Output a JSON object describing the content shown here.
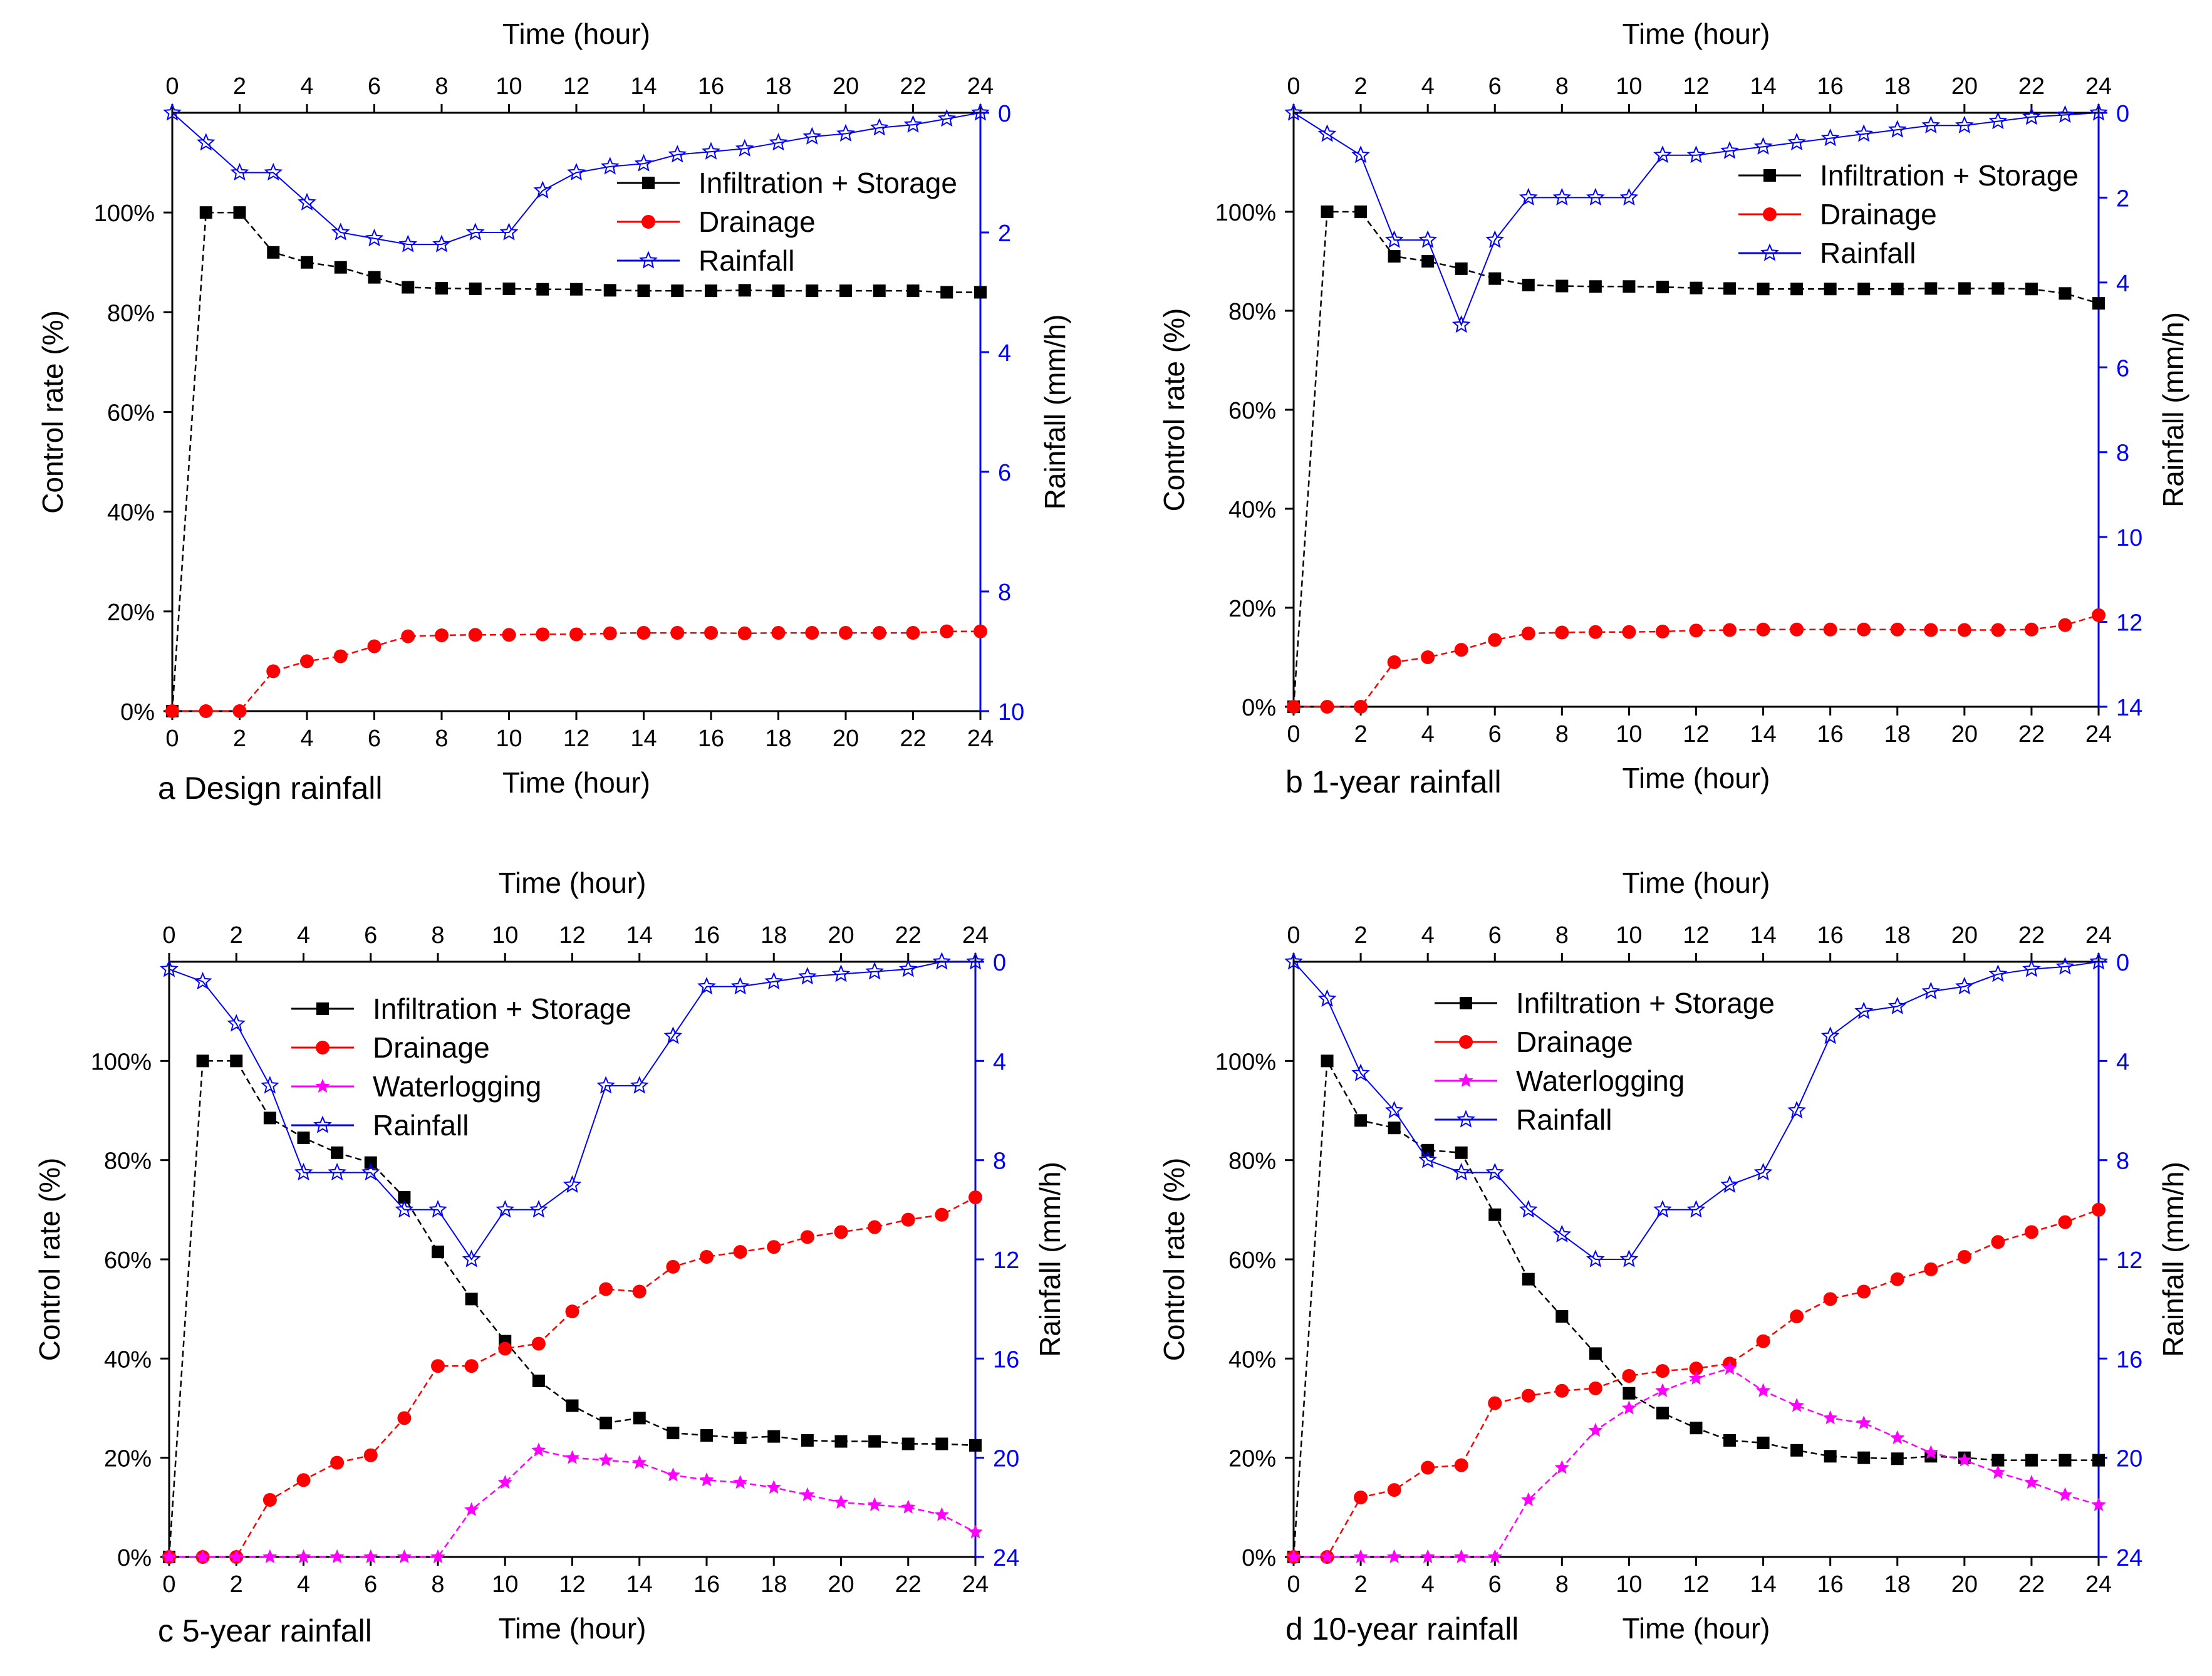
{
  "figure": {
    "x_label": "Time (hour)",
    "y_left_label": "Control rate (%)",
    "y_right_label": "Rainfall (mm/h)"
  },
  "colors": {
    "infiltration": "#000000",
    "drainage": "#ff0000",
    "waterlogging": "#ff00ff",
    "rainfall": "#0000ff",
    "axis_right": "#0000ff",
    "axis": "#000000"
  },
  "chart_data": [
    {
      "type": "line",
      "caption": "a Design rainfall",
      "x_ticks": [
        0,
        2,
        4,
        6,
        8,
        10,
        12,
        14,
        16,
        18,
        20,
        22,
        24
      ],
      "xlim": [
        0,
        24
      ],
      "ylim_left": [
        0,
        120
      ],
      "y_left_ticks": [
        0,
        20,
        40,
        60,
        80,
        100
      ],
      "ylim_right": [
        0,
        10
      ],
      "y_right_ticks": [
        0,
        2,
        4,
        6,
        8,
        10
      ],
      "right_axis_inverted": true,
      "legend": [
        {
          "series": "infiltration",
          "label": "Infiltration + Storage"
        },
        {
          "series": "drainage",
          "label": "Drainage"
        },
        {
          "series": "rainfall",
          "label": "Rainfall"
        }
      ],
      "series": [
        {
          "key": "infiltration",
          "name": "Infiltration + Storage",
          "axis": "left",
          "x": [
            0,
            1,
            2,
            3,
            4,
            5,
            6,
            7,
            8,
            9,
            10,
            11,
            12,
            13,
            14,
            15,
            16,
            17,
            18,
            19,
            20,
            21,
            22,
            23,
            24
          ],
          "values": [
            0,
            100,
            100,
            92,
            90,
            89,
            87,
            85,
            84.8,
            84.7,
            84.7,
            84.6,
            84.6,
            84.4,
            84.3,
            84.3,
            84.3,
            84.4,
            84.3,
            84.3,
            84.3,
            84.3,
            84.3,
            84,
            84
          ]
        },
        {
          "key": "drainage",
          "name": "Drainage",
          "axis": "left",
          "x": [
            0,
            1,
            2,
            3,
            4,
            5,
            6,
            7,
            8,
            9,
            10,
            11,
            12,
            13,
            14,
            15,
            16,
            17,
            18,
            19,
            20,
            21,
            22,
            23,
            24
          ],
          "values": [
            0,
            0,
            0,
            8,
            10,
            11,
            13,
            15,
            15.2,
            15.3,
            15.3,
            15.4,
            15.4,
            15.6,
            15.7,
            15.7,
            15.7,
            15.6,
            15.7,
            15.7,
            15.7,
            15.7,
            15.7,
            16,
            16
          ]
        },
        {
          "key": "rainfall",
          "name": "Rainfall",
          "axis": "right",
          "x": [
            0,
            1,
            2,
            3,
            4,
            5,
            6,
            7,
            8,
            9,
            10,
            11,
            12,
            13,
            14,
            15,
            16,
            17,
            18,
            19,
            20,
            21,
            22,
            23,
            24
          ],
          "values": [
            0,
            0.5,
            1,
            1,
            1.5,
            2,
            2.1,
            2.2,
            2.2,
            2,
            2,
            1.3,
            1,
            0.9,
            0.85,
            0.7,
            0.65,
            0.6,
            0.5,
            0.4,
            0.35,
            0.25,
            0.2,
            0.1,
            0
          ]
        }
      ]
    },
    {
      "type": "line",
      "caption": "b 1-year rainfall",
      "x_ticks": [
        0,
        2,
        4,
        6,
        8,
        10,
        12,
        14,
        16,
        18,
        20,
        22,
        24
      ],
      "xlim": [
        0,
        24
      ],
      "ylim_left": [
        0,
        120
      ],
      "y_left_ticks": [
        0,
        20,
        40,
        60,
        80,
        100
      ],
      "ylim_right": [
        0,
        14
      ],
      "y_right_ticks": [
        0,
        2,
        4,
        6,
        8,
        10,
        12,
        14
      ],
      "right_axis_inverted": true,
      "legend": [
        {
          "series": "infiltration",
          "label": "Infiltration + Storage"
        },
        {
          "series": "drainage",
          "label": "Drainage"
        },
        {
          "series": "rainfall",
          "label": "Rainfall"
        }
      ],
      "series": [
        {
          "key": "infiltration",
          "name": "Infiltration + Storage",
          "axis": "left",
          "x": [
            0,
            1,
            2,
            3,
            4,
            5,
            6,
            7,
            8,
            9,
            10,
            11,
            12,
            13,
            14,
            15,
            16,
            17,
            18,
            19,
            20,
            21,
            22,
            23,
            24
          ],
          "values": [
            0,
            100,
            100,
            91,
            90,
            88.5,
            86.5,
            85.2,
            85,
            84.9,
            84.9,
            84.8,
            84.6,
            84.5,
            84.4,
            84.4,
            84.4,
            84.4,
            84.4,
            84.5,
            84.5,
            84.5,
            84.4,
            83.5,
            81.5
          ]
        },
        {
          "key": "drainage",
          "name": "Drainage",
          "axis": "left",
          "x": [
            0,
            1,
            2,
            3,
            4,
            5,
            6,
            7,
            8,
            9,
            10,
            11,
            12,
            13,
            14,
            15,
            16,
            17,
            18,
            19,
            20,
            21,
            22,
            23,
            24
          ],
          "values": [
            0,
            0,
            0,
            9,
            10,
            11.5,
            13.5,
            14.8,
            15,
            15.1,
            15.1,
            15.2,
            15.4,
            15.5,
            15.6,
            15.6,
            15.6,
            15.6,
            15.6,
            15.5,
            15.5,
            15.5,
            15.6,
            16.5,
            18.5
          ]
        },
        {
          "key": "rainfall",
          "name": "Rainfall",
          "axis": "right",
          "x": [
            0,
            1,
            2,
            3,
            4,
            5,
            6,
            7,
            8,
            9,
            10,
            11,
            12,
            13,
            14,
            15,
            16,
            17,
            18,
            19,
            20,
            21,
            22,
            23,
            24
          ],
          "values": [
            0,
            0.5,
            1,
            3,
            3,
            5,
            3,
            2,
            2,
            2,
            2,
            1,
            1,
            0.9,
            0.8,
            0.7,
            0.6,
            0.5,
            0.4,
            0.3,
            0.3,
            0.2,
            0.1,
            0.05,
            0
          ]
        }
      ]
    },
    {
      "type": "line",
      "caption": "c 5-year rainfall",
      "x_ticks": [
        0,
        2,
        4,
        6,
        8,
        10,
        12,
        14,
        16,
        18,
        20,
        22,
        24
      ],
      "xlim": [
        0,
        24
      ],
      "ylim_left": [
        0,
        120
      ],
      "y_left_ticks": [
        0,
        20,
        40,
        60,
        80,
        100
      ],
      "ylim_right": [
        0,
        24
      ],
      "y_right_ticks": [
        0,
        4,
        8,
        12,
        16,
        20,
        24
      ],
      "right_axis_inverted": true,
      "legend": [
        {
          "series": "infiltration",
          "label": "Infiltration + Storage"
        },
        {
          "series": "drainage",
          "label": "Drainage"
        },
        {
          "series": "waterlogging",
          "label": "Waterlogging"
        },
        {
          "series": "rainfall",
          "label": "Rainfall"
        }
      ],
      "series": [
        {
          "key": "infiltration",
          "name": "Infiltration + Storage",
          "axis": "left",
          "x": [
            0,
            1,
            2,
            3,
            4,
            5,
            6,
            7,
            8,
            9,
            10,
            11,
            12,
            13,
            14,
            15,
            16,
            17,
            18,
            19,
            20,
            21,
            22,
            23,
            24
          ],
          "values": [
            0,
            100,
            100,
            88.5,
            84.5,
            81.5,
            79.5,
            72.5,
            61.5,
            52,
            43.5,
            35.5,
            30.5,
            27,
            28,
            25,
            24.5,
            24,
            24.3,
            23.5,
            23.3,
            23.3,
            22.8,
            22.8,
            22.5
          ]
        },
        {
          "key": "drainage",
          "name": "Drainage",
          "axis": "left",
          "x": [
            0,
            1,
            2,
            3,
            4,
            5,
            6,
            7,
            8,
            9,
            10,
            11,
            12,
            13,
            14,
            15,
            16,
            17,
            18,
            19,
            20,
            21,
            22,
            23,
            24
          ],
          "values": [
            0,
            0,
            0,
            11.5,
            15.5,
            19,
            20.5,
            28,
            38.5,
            38.5,
            42,
            43,
            49.5,
            54,
            53.5,
            58.5,
            60.5,
            61.5,
            62.5,
            64.5,
            65.5,
            66.5,
            68,
            69,
            72.5
          ]
        },
        {
          "key": "waterlogging",
          "name": "Waterlogging",
          "axis": "left",
          "x": [
            0,
            1,
            2,
            3,
            4,
            5,
            6,
            7,
            8,
            9,
            10,
            11,
            12,
            13,
            14,
            15,
            16,
            17,
            18,
            19,
            20,
            21,
            22,
            23,
            24
          ],
          "values": [
            0,
            0,
            0,
            0,
            0,
            0,
            0,
            0,
            0,
            9.5,
            15,
            21.5,
            20,
            19.5,
            19,
            16.5,
            15.5,
            15,
            14,
            12.5,
            11,
            10.5,
            10,
            8.5,
            5
          ]
        },
        {
          "key": "rainfall",
          "name": "Rainfall",
          "axis": "right",
          "x": [
            0,
            1,
            2,
            3,
            4,
            5,
            6,
            7,
            8,
            9,
            10,
            11,
            12,
            13,
            14,
            15,
            16,
            17,
            18,
            19,
            20,
            21,
            22,
            23,
            24
          ],
          "values": [
            0.3,
            0.8,
            2.5,
            5,
            8.5,
            8.5,
            8.5,
            10,
            10,
            12,
            10,
            10,
            9,
            5,
            5,
            3,
            1,
            1,
            0.8,
            0.6,
            0.5,
            0.4,
            0.3,
            0,
            0
          ]
        }
      ]
    },
    {
      "type": "line",
      "caption": "d 10-year rainfall",
      "x_ticks": [
        0,
        2,
        4,
        6,
        8,
        10,
        12,
        14,
        16,
        18,
        20,
        22,
        24
      ],
      "xlim": [
        0,
        24
      ],
      "ylim_left": [
        0,
        120
      ],
      "y_left_ticks": [
        0,
        20,
        40,
        60,
        80,
        100
      ],
      "ylim_right": [
        0,
        24
      ],
      "y_right_ticks": [
        0,
        4,
        8,
        12,
        16,
        20,
        24
      ],
      "right_axis_inverted": true,
      "legend": [
        {
          "series": "infiltration",
          "label": "Infiltration + Storage"
        },
        {
          "series": "drainage",
          "label": "Drainage"
        },
        {
          "series": "waterlogging",
          "label": "Waterlogging"
        },
        {
          "series": "rainfall",
          "label": "Rainfall"
        }
      ],
      "series": [
        {
          "key": "infiltration",
          "name": "Infiltration + Storage",
          "axis": "left",
          "x": [
            0,
            1,
            2,
            3,
            4,
            5,
            6,
            7,
            8,
            9,
            10,
            11,
            12,
            13,
            14,
            15,
            16,
            17,
            18,
            19,
            20,
            21,
            22,
            23,
            24
          ],
          "values": [
            0,
            100,
            88,
            86.5,
            82,
            81.5,
            69,
            56,
            48.5,
            41,
            33,
            29,
            26,
            23.5,
            23,
            21.5,
            20.3,
            20,
            19.8,
            20.3,
            20,
            19.5,
            19.5,
            19.5,
            19.5
          ]
        },
        {
          "key": "drainage",
          "name": "Drainage",
          "axis": "left",
          "x": [
            0,
            1,
            2,
            3,
            4,
            5,
            6,
            7,
            8,
            9,
            10,
            11,
            12,
            13,
            14,
            15,
            16,
            17,
            18,
            19,
            20,
            21,
            22,
            23,
            24
          ],
          "values": [
            0,
            0,
            12,
            13.5,
            18,
            18.5,
            31,
            32.5,
            33.5,
            34,
            36.5,
            37.5,
            38,
            39,
            43.5,
            48.5,
            52,
            53.5,
            56,
            58,
            60.5,
            63.5,
            65.5,
            67.5,
            70
          ]
        },
        {
          "key": "waterlogging",
          "name": "Waterlogging",
          "axis": "left",
          "x": [
            0,
            1,
            2,
            3,
            4,
            5,
            6,
            7,
            8,
            9,
            10,
            11,
            12,
            13,
            14,
            15,
            16,
            17,
            18,
            19,
            20,
            21,
            22,
            23,
            24
          ],
          "values": [
            0,
            0,
            0,
            0,
            0,
            0,
            0,
            11.5,
            18,
            25.5,
            30,
            33.5,
            36,
            38,
            33.5,
            30.5,
            28,
            27,
            24,
            21,
            19.5,
            17,
            15,
            12.5,
            10.5
          ]
        },
        {
          "key": "rainfall",
          "name": "Rainfall",
          "axis": "right",
          "x": [
            0,
            1,
            2,
            3,
            4,
            5,
            6,
            7,
            8,
            9,
            10,
            11,
            12,
            13,
            14,
            15,
            16,
            17,
            18,
            19,
            20,
            21,
            22,
            23,
            24
          ],
          "values": [
            0,
            1.5,
            4.5,
            6,
            8,
            8.5,
            8.5,
            10,
            11,
            12,
            12,
            10,
            10,
            9,
            8.5,
            6,
            3,
            2,
            1.8,
            1.2,
            1,
            0.5,
            0.3,
            0.2,
            0
          ]
        }
      ]
    }
  ]
}
